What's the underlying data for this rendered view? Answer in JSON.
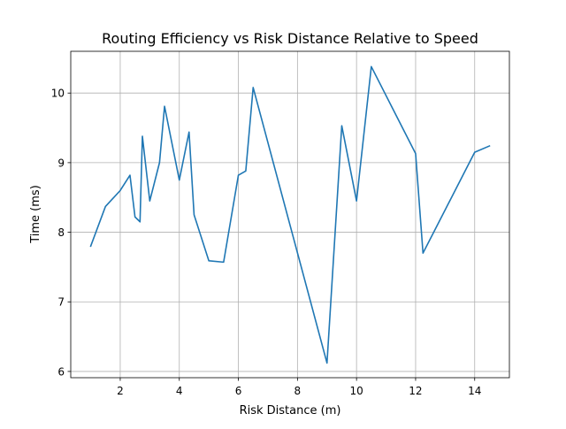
{
  "chart_data": {
    "type": "line",
    "title": "Routing Efficiency vs Risk Distance Relative to Speed",
    "xlabel": "Risk Distance (m)",
    "ylabel": "Time (ms)",
    "xlim": [
      0.325,
      15.175
    ],
    "ylim": [
      5.91,
      10.6
    ],
    "xticks": [
      2,
      4,
      6,
      8,
      10,
      12,
      14
    ],
    "yticks": [
      6,
      7,
      8,
      9,
      10
    ],
    "grid": true,
    "series": [
      {
        "color": "#1f77b4",
        "x": [
          1.0,
          1.5,
          2.0,
          2.33,
          2.5,
          2.67,
          2.75,
          3.0,
          3.33,
          3.5,
          4.0,
          4.33,
          4.5,
          5.0,
          5.5,
          6.0,
          6.25,
          6.5,
          9.0,
          9.5,
          10.0,
          10.5,
          12.0,
          12.25,
          14.0,
          14.5
        ],
        "y": [
          7.8,
          8.37,
          8.6,
          8.82,
          8.22,
          8.15,
          9.38,
          8.45,
          9.0,
          9.81,
          8.75,
          9.44,
          8.25,
          7.59,
          7.57,
          8.82,
          8.88,
          10.08,
          6.12,
          9.53,
          8.45,
          10.38,
          9.13,
          7.7,
          9.15,
          9.24
        ]
      }
    ]
  }
}
